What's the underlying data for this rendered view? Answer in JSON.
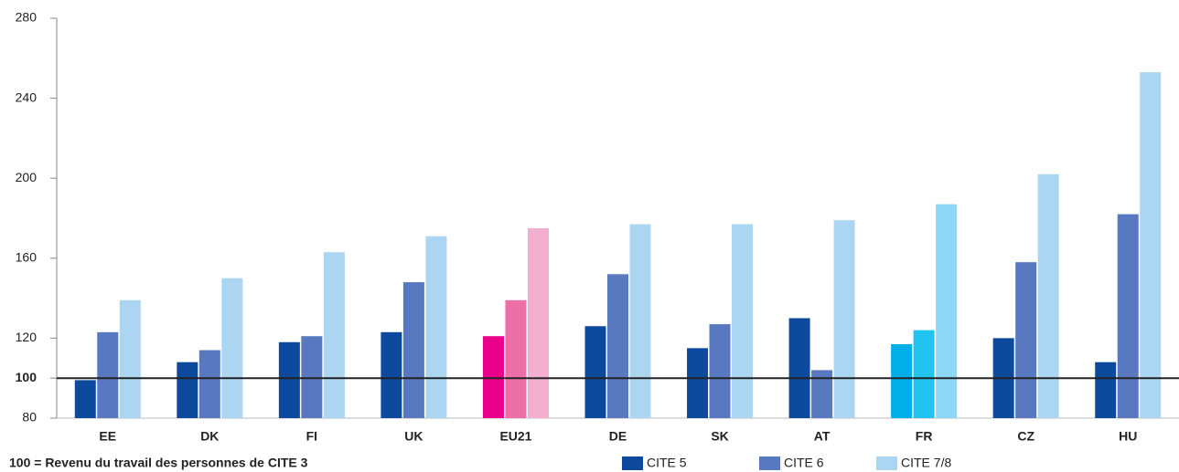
{
  "chart_data": {
    "type": "bar",
    "categories": [
      "EE",
      "DK",
      "FI",
      "UK",
      "EU21",
      "DE",
      "SK",
      "AT",
      "FR",
      "CZ",
      "HU"
    ],
    "series": [
      {
        "name": "CITE 5",
        "color": "#0d4a9e",
        "values": [
          99,
          108,
          118,
          123,
          121,
          126,
          115,
          130,
          117,
          120,
          108
        ]
      },
      {
        "name": "CITE 6",
        "color": "#5878c0",
        "values": [
          123,
          114,
          121,
          148,
          139,
          152,
          127,
          104,
          124,
          158,
          182
        ]
      },
      {
        "name": "CITE 7/8",
        "color": "#abd5f0",
        "values": [
          139,
          150,
          163,
          171,
          175,
          177,
          177,
          179,
          187,
          202,
          253
        ]
      }
    ],
    "highlights": [
      {
        "category": "EU21",
        "colors": [
          "#e8008a",
          "#ee6fa8",
          "#f3aed0"
        ]
      },
      {
        "category": "FR",
        "colors": [
          "#00aee8",
          "#20c4ee",
          "#8fd8f5"
        ]
      }
    ],
    "ylim": [
      80,
      280
    ],
    "yticks": [
      80,
      100,
      120,
      160,
      200,
      240,
      280
    ],
    "reference_line": 100,
    "note": "100  = Revenu du travail des personnes de CITE 3",
    "legend": "bottom"
  }
}
